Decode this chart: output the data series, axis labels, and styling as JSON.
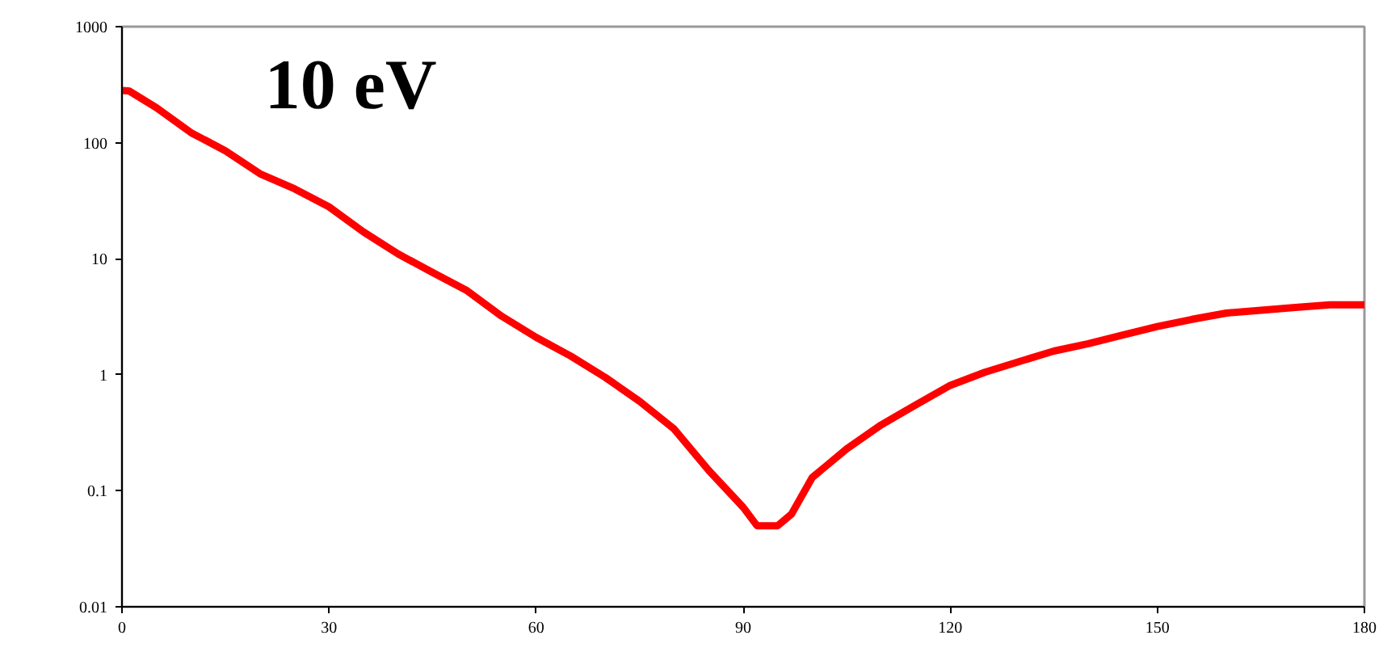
{
  "chart_data": {
    "type": "line",
    "title": "10 eV",
    "x": [
      0,
      1,
      5,
      10,
      15,
      20,
      25,
      30,
      35,
      40,
      45,
      50,
      55,
      60,
      65,
      70,
      75,
      80,
      85,
      90,
      92,
      95,
      97,
      100,
      105,
      110,
      115,
      120,
      125,
      130,
      135,
      140,
      145,
      150,
      155,
      160,
      165,
      170,
      175,
      180
    ],
    "series": [
      {
        "color": "#ff0000",
        "values": [
          282,
          280,
          200,
          122,
          85,
          54,
          40,
          28,
          17,
          11,
          7.6,
          5.3,
          3.2,
          2.1,
          1.45,
          0.95,
          0.59,
          0.34,
          0.15,
          0.072,
          0.05,
          0.05,
          0.063,
          0.13,
          0.23,
          0.37,
          0.55,
          0.81,
          1.05,
          1.3,
          1.6,
          1.85,
          2.2,
          2.6,
          3.0,
          3.4,
          3.6,
          3.8,
          4.0,
          4.0
        ]
      }
    ],
    "xlim": [
      0,
      180
    ],
    "xticks": [
      0,
      30,
      60,
      90,
      120,
      150,
      180
    ],
    "ylim": [
      0.01,
      1000
    ],
    "yticks": [
      0.01,
      0.1,
      1,
      10,
      100,
      1000
    ],
    "log": "y",
    "grid": false,
    "marker": "none",
    "line_style": "solid"
  }
}
